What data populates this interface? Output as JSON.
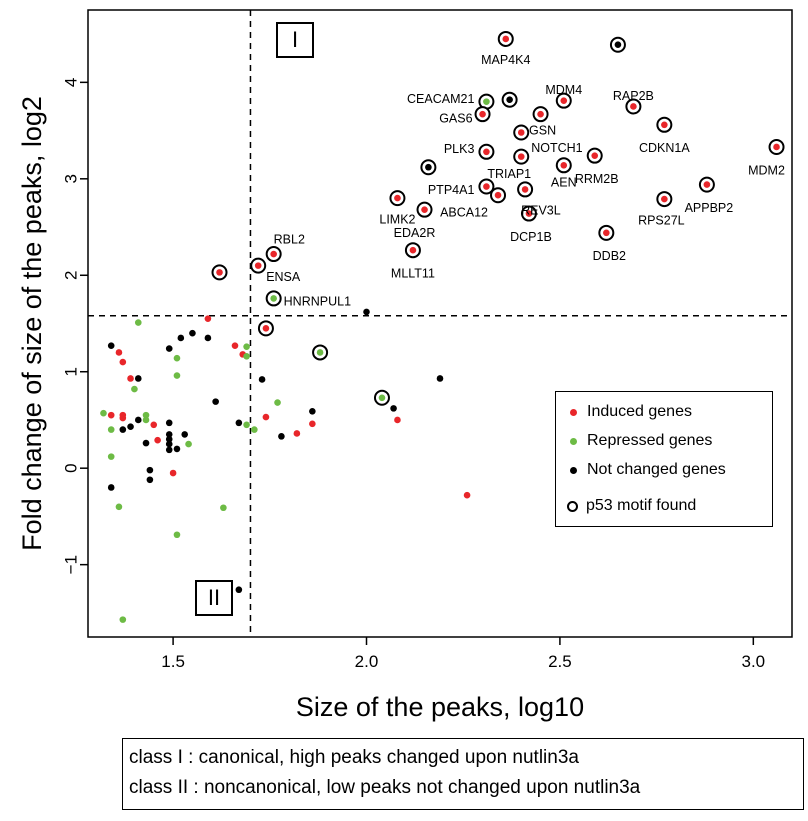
{
  "chart_data": {
    "type": "scatter",
    "xlabel": "Size of the peaks, log10",
    "ylabel": "Fold change of size of the peaks, log2",
    "xlim": [
      1.28,
      3.1
    ],
    "ylim": [
      -1.75,
      4.75
    ],
    "xticks": [
      "1.5",
      "2.0",
      "2.5",
      "3.0"
    ],
    "yticks": [
      "−1",
      "0",
      "1",
      "2",
      "3",
      "4"
    ],
    "grid": false,
    "legend_position": "right",
    "thresholds": {
      "x": 1.7,
      "y": 1.58
    },
    "region_labels": {
      "class1": "I",
      "class2": "II"
    },
    "colors": {
      "induced": "#e8262a",
      "repressed": "#6dbb45",
      "notchanged": "#000000"
    },
    "legend": [
      {
        "label": "Induced genes",
        "kind": "induced"
      },
      {
        "label": "Repressed genes",
        "kind": "repressed"
      },
      {
        "label": "Not changed genes",
        "kind": "notchanged"
      },
      {
        "label": "p53 motif found",
        "kind": "ring"
      }
    ],
    "points": [
      {
        "x": 2.36,
        "y": 4.45,
        "g": "i",
        "m": 1
      },
      {
        "x": 2.65,
        "y": 4.39,
        "g": "n",
        "m": 1
      },
      {
        "x": 2.31,
        "y": 3.8,
        "g": "r",
        "m": 1
      },
      {
        "x": 2.37,
        "y": 3.82,
        "g": "n",
        "m": 1
      },
      {
        "x": 2.51,
        "y": 3.81,
        "g": "i",
        "m": 1
      },
      {
        "x": 2.69,
        "y": 3.75,
        "g": "i",
        "m": 1
      },
      {
        "x": 2.3,
        "y": 3.67,
        "g": "i",
        "m": 1
      },
      {
        "x": 2.45,
        "y": 3.67,
        "g": "i",
        "m": 1
      },
      {
        "x": 2.77,
        "y": 3.56,
        "g": "i",
        "m": 1
      },
      {
        "x": 2.4,
        "y": 3.48,
        "g": "i",
        "m": 1
      },
      {
        "x": 3.06,
        "y": 3.33,
        "g": "i",
        "m": 1
      },
      {
        "x": 2.31,
        "y": 3.28,
        "g": "i",
        "m": 1
      },
      {
        "x": 2.4,
        "y": 3.23,
        "g": "i",
        "m": 1
      },
      {
        "x": 2.59,
        "y": 3.24,
        "g": "i",
        "m": 1
      },
      {
        "x": 2.51,
        "y": 3.14,
        "g": "i",
        "m": 1
      },
      {
        "x": 2.16,
        "y": 3.12,
        "g": "n",
        "m": 1
      },
      {
        "x": 2.88,
        "y": 2.94,
        "g": "i",
        "m": 1
      },
      {
        "x": 2.31,
        "y": 2.92,
        "g": "i",
        "m": 1
      },
      {
        "x": 2.41,
        "y": 2.89,
        "g": "i",
        "m": 1
      },
      {
        "x": 2.34,
        "y": 2.83,
        "g": "i",
        "m": 1
      },
      {
        "x": 2.08,
        "y": 2.8,
        "g": "i",
        "m": 1
      },
      {
        "x": 2.77,
        "y": 2.79,
        "g": "i",
        "m": 1
      },
      {
        "x": 2.15,
        "y": 2.68,
        "g": "i",
        "m": 1
      },
      {
        "x": 2.42,
        "y": 2.64,
        "g": "i",
        "m": 1
      },
      {
        "x": 2.62,
        "y": 2.44,
        "g": "i",
        "m": 1
      },
      {
        "x": 2.12,
        "y": 2.26,
        "g": "i",
        "m": 1
      },
      {
        "x": 1.76,
        "y": 2.22,
        "g": "i",
        "m": 1
      },
      {
        "x": 1.72,
        "y": 2.1,
        "g": "i",
        "m": 1
      },
      {
        "x": 1.62,
        "y": 2.03,
        "g": "i",
        "m": 1
      },
      {
        "x": 1.76,
        "y": 1.76,
        "g": "r",
        "m": 1
      },
      {
        "x": 1.74,
        "y": 1.45,
        "g": "i",
        "m": 1
      },
      {
        "x": 1.88,
        "y": 1.2,
        "g": "r",
        "m": 1
      },
      {
        "x": 2.04,
        "y": 0.73,
        "g": "r",
        "m": 1
      },
      {
        "x": 2.0,
        "y": 1.62,
        "g": "n",
        "m": 0
      },
      {
        "x": 1.59,
        "y": 1.55,
        "g": "i",
        "m": 0
      },
      {
        "x": 1.41,
        "y": 1.51,
        "g": "r",
        "m": 0
      },
      {
        "x": 1.34,
        "y": 1.27,
        "g": "n",
        "m": 0
      },
      {
        "x": 1.55,
        "y": 1.4,
        "g": "n",
        "m": 0
      },
      {
        "x": 1.52,
        "y": 1.35,
        "g": "n",
        "m": 0
      },
      {
        "x": 1.59,
        "y": 1.35,
        "g": "n",
        "m": 0
      },
      {
        "x": 1.66,
        "y": 1.27,
        "g": "i",
        "m": 0
      },
      {
        "x": 1.69,
        "y": 1.26,
        "g": "r",
        "m": 0
      },
      {
        "x": 1.49,
        "y": 1.24,
        "g": "n",
        "m": 0
      },
      {
        "x": 1.36,
        "y": 1.2,
        "g": "i",
        "m": 0
      },
      {
        "x": 1.68,
        "y": 1.18,
        "g": "i",
        "m": 0
      },
      {
        "x": 1.69,
        "y": 1.16,
        "g": "r",
        "m": 0
      },
      {
        "x": 1.37,
        "y": 1.1,
        "g": "i",
        "m": 0
      },
      {
        "x": 1.51,
        "y": 1.14,
        "g": "r",
        "m": 0
      },
      {
        "x": 1.51,
        "y": 0.96,
        "g": "r",
        "m": 0
      },
      {
        "x": 1.39,
        "y": 0.93,
        "g": "i",
        "m": 0
      },
      {
        "x": 1.41,
        "y": 0.93,
        "g": "n",
        "m": 0
      },
      {
        "x": 2.19,
        "y": 0.93,
        "g": "n",
        "m": 0
      },
      {
        "x": 1.73,
        "y": 0.92,
        "g": "n",
        "m": 0
      },
      {
        "x": 1.4,
        "y": 0.82,
        "g": "r",
        "m": 0
      },
      {
        "x": 1.61,
        "y": 0.69,
        "g": "n",
        "m": 0
      },
      {
        "x": 1.77,
        "y": 0.68,
        "g": "r",
        "m": 0
      },
      {
        "x": 2.07,
        "y": 0.62,
        "g": "n",
        "m": 0
      },
      {
        "x": 1.86,
        "y": 0.59,
        "g": "n",
        "m": 0
      },
      {
        "x": 1.32,
        "y": 0.57,
        "g": "r",
        "m": 0
      },
      {
        "x": 1.34,
        "y": 0.55,
        "g": "i",
        "m": 0
      },
      {
        "x": 1.37,
        "y": 0.55,
        "g": "i",
        "m": 0
      },
      {
        "x": 1.43,
        "y": 0.55,
        "g": "r",
        "m": 0
      },
      {
        "x": 1.37,
        "y": 0.52,
        "g": "i",
        "m": 0
      },
      {
        "x": 1.74,
        "y": 0.53,
        "g": "i",
        "m": 0
      },
      {
        "x": 1.43,
        "y": 0.5,
        "g": "r",
        "m": 0
      },
      {
        "x": 1.41,
        "y": 0.5,
        "g": "n",
        "m": 0
      },
      {
        "x": 2.08,
        "y": 0.5,
        "g": "i",
        "m": 0
      },
      {
        "x": 1.45,
        "y": 0.45,
        "g": "i",
        "m": 0
      },
      {
        "x": 1.49,
        "y": 0.47,
        "g": "n",
        "m": 0
      },
      {
        "x": 1.67,
        "y": 0.47,
        "g": "n",
        "m": 0
      },
      {
        "x": 1.69,
        "y": 0.45,
        "g": "r",
        "m": 0
      },
      {
        "x": 1.86,
        "y": 0.46,
        "g": "i",
        "m": 0
      },
      {
        "x": 1.39,
        "y": 0.43,
        "g": "n",
        "m": 0
      },
      {
        "x": 1.34,
        "y": 0.4,
        "g": "r",
        "m": 0
      },
      {
        "x": 1.37,
        "y": 0.4,
        "g": "n",
        "m": 0
      },
      {
        "x": 1.71,
        "y": 0.4,
        "g": "r",
        "m": 0
      },
      {
        "x": 1.82,
        "y": 0.36,
        "g": "i",
        "m": 0
      },
      {
        "x": 1.49,
        "y": 0.35,
        "g": "n",
        "m": 0
      },
      {
        "x": 1.53,
        "y": 0.35,
        "g": "n",
        "m": 0
      },
      {
        "x": 1.78,
        "y": 0.33,
        "g": "n",
        "m": 0
      },
      {
        "x": 1.49,
        "y": 0.3,
        "g": "n",
        "m": 0
      },
      {
        "x": 1.46,
        "y": 0.29,
        "g": "i",
        "m": 0
      },
      {
        "x": 1.43,
        "y": 0.26,
        "g": "n",
        "m": 0
      },
      {
        "x": 1.49,
        "y": 0.25,
        "g": "n",
        "m": 0
      },
      {
        "x": 1.54,
        "y": 0.25,
        "g": "r",
        "m": 0
      },
      {
        "x": 1.51,
        "y": 0.2,
        "g": "n",
        "m": 0
      },
      {
        "x": 1.49,
        "y": 0.19,
        "g": "n",
        "m": 0
      },
      {
        "x": 1.34,
        "y": 0.12,
        "g": "r",
        "m": 0
      },
      {
        "x": 1.44,
        "y": -0.02,
        "g": "n",
        "m": 0
      },
      {
        "x": 1.5,
        "y": -0.05,
        "g": "i",
        "m": 0
      },
      {
        "x": 1.44,
        "y": -0.12,
        "g": "n",
        "m": 0
      },
      {
        "x": 1.34,
        "y": -0.2,
        "g": "n",
        "m": 0
      },
      {
        "x": 2.26,
        "y": -0.28,
        "g": "i",
        "m": 0
      },
      {
        "x": 1.36,
        "y": -0.4,
        "g": "r",
        "m": 0
      },
      {
        "x": 1.63,
        "y": -0.41,
        "g": "r",
        "m": 0
      },
      {
        "x": 1.51,
        "y": -0.69,
        "g": "r",
        "m": 0
      },
      {
        "x": 1.67,
        "y": -1.26,
        "g": "n",
        "m": 0
      },
      {
        "x": 1.37,
        "y": -1.57,
        "g": "r",
        "m": 0
      }
    ],
    "annotations": [
      {
        "text": "MAP4K4",
        "x": 2.36,
        "y": 4.45,
        "dx": 0,
        "dy": 22,
        "anchor": "middle"
      },
      {
        "text": "CEACAM21",
        "x": 2.31,
        "y": 3.8,
        "dx": -12,
        "dy": -2,
        "anchor": "end"
      },
      {
        "text": "MDM4",
        "x": 2.51,
        "y": 3.81,
        "dx": 0,
        "dy": -10,
        "anchor": "middle"
      },
      {
        "text": "RAP2B",
        "x": 2.69,
        "y": 3.75,
        "dx": 0,
        "dy": -10,
        "anchor": "middle"
      },
      {
        "text": "GAS6",
        "x": 2.3,
        "y": 3.67,
        "dx": -10,
        "dy": 5,
        "anchor": "end"
      },
      {
        "text": "GSN",
        "x": 2.45,
        "y": 3.67,
        "dx": 2,
        "dy": 17,
        "anchor": "middle"
      },
      {
        "text": "NOTCH1",
        "x": 2.4,
        "y": 3.48,
        "dx": 10,
        "dy": 16,
        "anchor": "start"
      },
      {
        "text": "CDKN1A",
        "x": 2.77,
        "y": 3.56,
        "dx": 0,
        "dy": 24,
        "anchor": "middle"
      },
      {
        "text": "PLK3",
        "x": 2.31,
        "y": 3.28,
        "dx": -12,
        "dy": -2,
        "anchor": "end"
      },
      {
        "text": "TRIAP1",
        "x": 2.4,
        "y": 3.23,
        "dx": -12,
        "dy": 18,
        "anchor": "middle"
      },
      {
        "text": "AEN",
        "x": 2.51,
        "y": 3.14,
        "dx": 0,
        "dy": 18,
        "anchor": "middle"
      },
      {
        "text": "RRM2B",
        "x": 2.59,
        "y": 3.24,
        "dx": 2,
        "dy": 24,
        "anchor": "middle"
      },
      {
        "text": "MDM2",
        "x": 3.06,
        "y": 3.33,
        "dx": -10,
        "dy": 24,
        "anchor": "middle"
      },
      {
        "text": "APPBP2",
        "x": 2.88,
        "y": 2.94,
        "dx": 2,
        "dy": 24,
        "anchor": "middle"
      },
      {
        "text": "PTP4A1",
        "x": 2.31,
        "y": 2.92,
        "dx": -12,
        "dy": 4,
        "anchor": "end"
      },
      {
        "text": "REV3L",
        "x": 2.41,
        "y": 2.89,
        "dx": -4,
        "dy": 22,
        "anchor": "start"
      },
      {
        "text": "ABCA12",
        "x": 2.34,
        "y": 2.83,
        "dx": -10,
        "dy": 18,
        "anchor": "end"
      },
      {
        "text": "RPS27L",
        "x": 2.77,
        "y": 2.79,
        "dx": -3,
        "dy": 22,
        "anchor": "middle"
      },
      {
        "text": "LIMK2",
        "x": 2.08,
        "y": 2.8,
        "dx": 0,
        "dy": 22,
        "anchor": "middle"
      },
      {
        "text": "EDA2R",
        "x": 2.15,
        "y": 2.68,
        "dx": -10,
        "dy": 24,
        "anchor": "middle"
      },
      {
        "text": "DCP1B",
        "x": 2.42,
        "y": 2.64,
        "dx": 2,
        "dy": 24,
        "anchor": "middle"
      },
      {
        "text": "DDB2",
        "x": 2.62,
        "y": 2.44,
        "dx": 3,
        "dy": 24,
        "anchor": "middle"
      },
      {
        "text": "MLLT11",
        "x": 2.12,
        "y": 2.26,
        "dx": 0,
        "dy": 24,
        "anchor": "middle"
      },
      {
        "text": "RBL2",
        "x": 1.76,
        "y": 2.22,
        "dx": 0,
        "dy": -14,
        "anchor": "start"
      },
      {
        "text": "ENSA",
        "x": 1.72,
        "y": 2.1,
        "dx": 8,
        "dy": 12,
        "anchor": "start"
      },
      {
        "text": "HNRNPUL1",
        "x": 1.76,
        "y": 1.76,
        "dx": 10,
        "dy": 4,
        "anchor": "start"
      }
    ]
  },
  "class_box": {
    "line1": "class I : canonical, high peaks changed upon nutlin3a",
    "line2": "class II : noncanonical, low peaks not changed upon nutlin3a"
  }
}
